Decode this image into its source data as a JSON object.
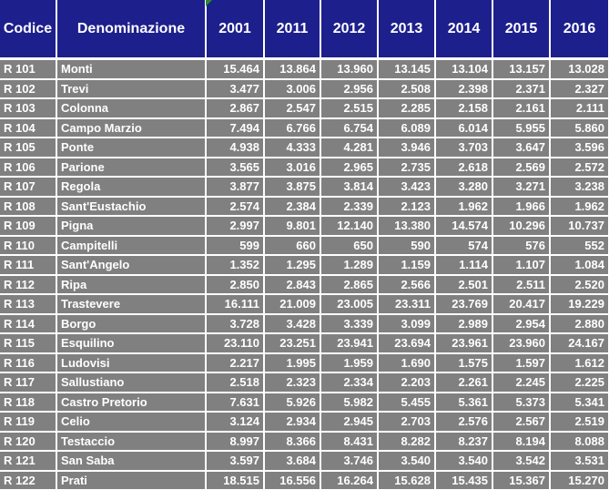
{
  "headers": [
    "Codice",
    "Denominazione",
    "2001",
    "2011",
    "2012",
    "2013",
    "2014",
    "2015",
    "2016"
  ],
  "rows": [
    [
      "R 101",
      "Monti",
      "15.464",
      "13.864",
      "13.960",
      "13.145",
      "13.104",
      "13.157",
      "13.028"
    ],
    [
      "R 102",
      "Trevi",
      "3.477",
      "3.006",
      "2.956",
      "2.508",
      "2.398",
      "2.371",
      "2.327"
    ],
    [
      "R 103",
      "Colonna",
      "2.867",
      "2.547",
      "2.515",
      "2.285",
      "2.158",
      "2.161",
      "2.111"
    ],
    [
      "R 104",
      "Campo Marzio",
      "7.494",
      "6.766",
      "6.754",
      "6.089",
      "6.014",
      "5.955",
      "5.860"
    ],
    [
      "R 105",
      "Ponte",
      "4.938",
      "4.333",
      "4.281",
      "3.946",
      "3.703",
      "3.647",
      "3.596"
    ],
    [
      "R 106",
      "Parione",
      "3.565",
      "3.016",
      "2.965",
      "2.735",
      "2.618",
      "2.569",
      "2.572"
    ],
    [
      "R 107",
      "Regola",
      "3.877",
      "3.875",
      "3.814",
      "3.423",
      "3.280",
      "3.271",
      "3.238"
    ],
    [
      "R 108",
      "Sant'Eustachio",
      "2.574",
      "2.384",
      "2.339",
      "2.123",
      "1.962",
      "1.966",
      "1.962"
    ],
    [
      "R 109",
      "Pigna",
      "2.997",
      "9.801",
      "12.140",
      "13.380",
      "14.574",
      "10.296",
      "10.737"
    ],
    [
      "R 110",
      "Campitelli",
      "599",
      "660",
      "650",
      "590",
      "574",
      "576",
      "552"
    ],
    [
      "R 111",
      "Sant'Angelo",
      "1.352",
      "1.295",
      "1.289",
      "1.159",
      "1.114",
      "1.107",
      "1.084"
    ],
    [
      "R 112",
      "Ripa",
      "2.850",
      "2.843",
      "2.865",
      "2.566",
      "2.501",
      "2.511",
      "2.520"
    ],
    [
      "R 113",
      "Trastevere",
      "16.111",
      "21.009",
      "23.005",
      "23.311",
      "23.769",
      "20.417",
      "19.229"
    ],
    [
      "R 114",
      "Borgo",
      "3.728",
      "3.428",
      "3.339",
      "3.099",
      "2.989",
      "2.954",
      "2.880"
    ],
    [
      "R 115",
      "Esquilino",
      "23.110",
      "23.251",
      "23.941",
      "23.694",
      "23.961",
      "23.960",
      "24.167"
    ],
    [
      "R 116",
      "Ludovisi",
      "2.217",
      "1.995",
      "1.959",
      "1.690",
      "1.575",
      "1.597",
      "1.612"
    ],
    [
      "R 117",
      "Sallustiano",
      "2.518",
      "2.323",
      "2.334",
      "2.203",
      "2.261",
      "2.245",
      "2.225"
    ],
    [
      "R 118",
      "Castro Pretorio",
      "7.631",
      "5.926",
      "5.982",
      "5.455",
      "5.361",
      "5.373",
      "5.341"
    ],
    [
      "R 119",
      "Celio",
      "3.124",
      "2.934",
      "2.945",
      "2.703",
      "2.576",
      "2.567",
      "2.519"
    ],
    [
      "R 120",
      "Testaccio",
      "8.997",
      "8.366",
      "8.431",
      "8.282",
      "8.237",
      "8.194",
      "8.088"
    ],
    [
      "R 121",
      "San Saba",
      "3.597",
      "3.684",
      "3.746",
      "3.540",
      "3.540",
      "3.542",
      "3.531"
    ],
    [
      "R 122",
      "Prati",
      "18.515",
      "16.556",
      "16.264",
      "15.628",
      "15.435",
      "15.367",
      "15.270"
    ]
  ],
  "colors": {
    "header_bg": "#1d1f8c",
    "cell_bg": "#808080",
    "grid": "#ffffff",
    "corner_marker": "#2f8a2f"
  }
}
